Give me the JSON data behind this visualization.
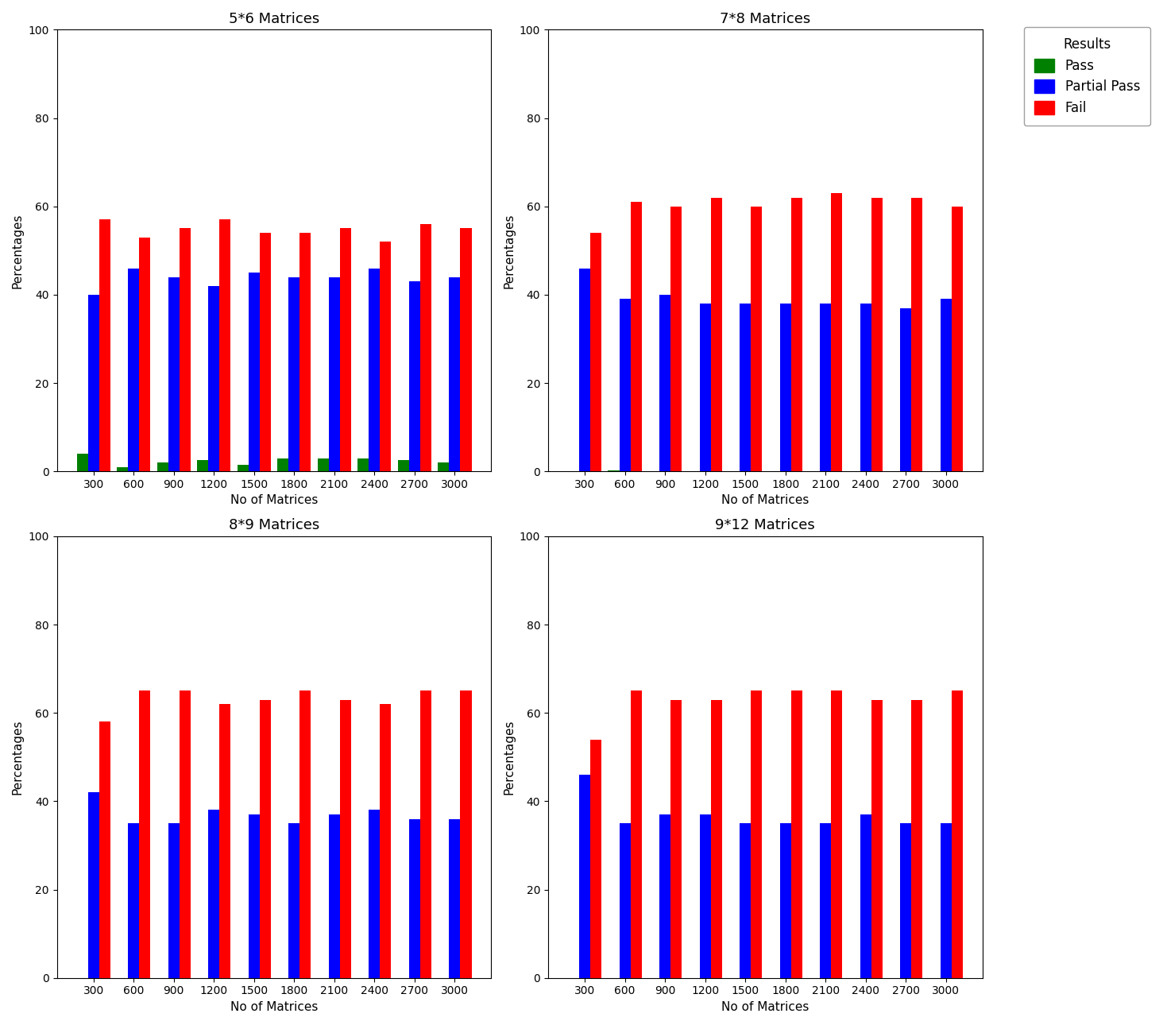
{
  "subplots": [
    {
      "title": "5*6 Matrices",
      "pass": [
        4,
        1,
        2,
        2.5,
        1.5,
        3,
        3,
        3,
        2.5,
        2
      ],
      "partial_pass": [
        40,
        46,
        44,
        42,
        45,
        44,
        44,
        46,
        43,
        44
      ],
      "fail": [
        57,
        53,
        55,
        57,
        54,
        54,
        55,
        52,
        56,
        55
      ]
    },
    {
      "title": "7*8 Matrices",
      "pass": [
        0,
        0.3,
        0,
        0,
        0,
        0,
        0,
        0,
        0,
        0
      ],
      "partial_pass": [
        46,
        39,
        40,
        38,
        38,
        38,
        38,
        38,
        37,
        39
      ],
      "fail": [
        54,
        61,
        60,
        62,
        60,
        62,
        63,
        62,
        62,
        60
      ]
    },
    {
      "title": "8*9 Matrices",
      "pass": [
        0,
        0,
        0,
        0,
        0,
        0,
        0,
        0,
        0,
        0
      ],
      "partial_pass": [
        42,
        35,
        35,
        38,
        37,
        35,
        37,
        38,
        36,
        36
      ],
      "fail": [
        58,
        65,
        65,
        62,
        63,
        65,
        63,
        62,
        65,
        65
      ]
    },
    {
      "title": "9*12 Matrices",
      "pass": [
        0,
        0,
        0,
        0,
        0,
        0,
        0,
        0,
        0,
        0
      ],
      "partial_pass": [
        46,
        35,
        37,
        37,
        35,
        35,
        35,
        37,
        35,
        35
      ],
      "fail": [
        54,
        65,
        63,
        63,
        65,
        65,
        65,
        63,
        63,
        65
      ]
    }
  ],
  "x_ticks": [
    300,
    600,
    900,
    1200,
    1500,
    1800,
    2100,
    2400,
    2700,
    3000
  ],
  "pass_color": "#008000",
  "partial_pass_color": "#0000FF",
  "fail_color": "#FF0000",
  "xlabel": "No of Matrices",
  "ylabel": "Percentages",
  "ylim": [
    0,
    100
  ],
  "yticks": [
    0,
    20,
    40,
    60,
    80,
    100
  ],
  "legend_title": "Results",
  "legend_labels": [
    "Pass",
    "Partial Pass",
    "Fail"
  ],
  "bar_width": 0.28,
  "title_fontsize": 13,
  "axis_label_fontsize": 11,
  "tick_fontsize": 10,
  "legend_fontsize": 12
}
